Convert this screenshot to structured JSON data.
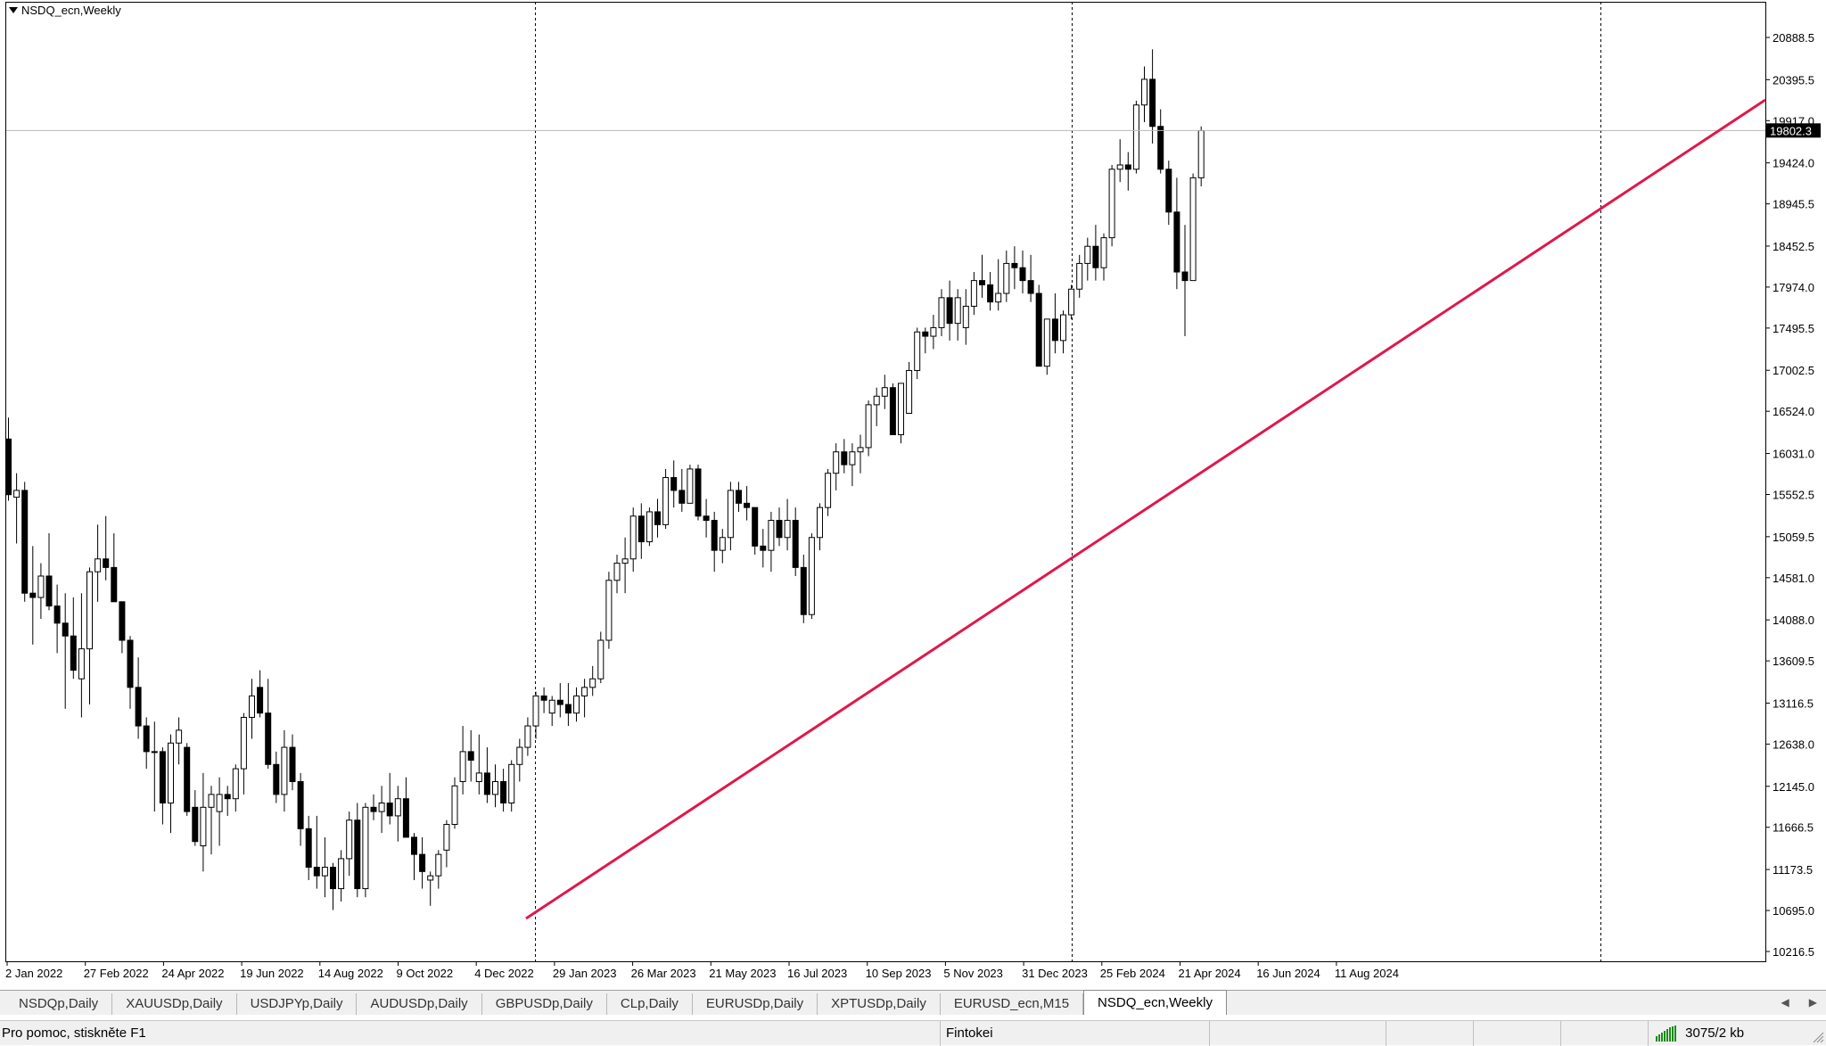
{
  "window": {
    "title": "NSDQ_ecn,Weekly"
  },
  "chart_data": {
    "type": "candlestick",
    "symbol": "NSDQ_ecn",
    "timeframe": "Weekly",
    "grid": false,
    "price_axis_labels": [
      "20888.5",
      "20395.5",
      "19917.0",
      "19424.0",
      "18945.5",
      "18452.5",
      "17974.0",
      "17495.5",
      "17002.5",
      "16524.0",
      "16031.0",
      "15552.5",
      "15059.5",
      "14581.0",
      "14088.0",
      "13609.5",
      "13116.5",
      "12638.0",
      "12145.0",
      "11666.5",
      "11173.5",
      "10695.0",
      "10216.5"
    ],
    "price_range": [
      10216.5,
      21300.0
    ],
    "current_price": "19802.3",
    "time_axis_labels": [
      "2 Jan 2022",
      "27 Feb 2022",
      "24 Apr 2022",
      "19 Jun 2022",
      "14 Aug 2022",
      "9 Oct 2022",
      "4 Dec 2022",
      "29 Jan 2023",
      "26 Mar 2023",
      "21 May 2023",
      "16 Jul 2023",
      "10 Sep 2023",
      "5 Nov 2023",
      "31 Dec 2023",
      "25 Feb 2024",
      "21 Apr 2024",
      "16 Jun 2024",
      "11 Aug 2024"
    ],
    "period_separators_at_labels": [
      "4 Dec 2022",
      "31 Dec 2023"
    ],
    "trendline": {
      "color": "#e0184a",
      "from": {
        "date": "11 Dec 2022",
        "price": 10640
      },
      "to": {
        "date": "beyond chart right edge",
        "price": 19990
      }
    },
    "candles": [
      {
        "o": 16200,
        "h": 16450,
        "l": 15480,
        "c": 15550
      },
      {
        "o": 15520,
        "h": 15800,
        "l": 14980,
        "c": 15600
      },
      {
        "o": 15600,
        "h": 15700,
        "l": 14300,
        "c": 14400
      },
      {
        "o": 14400,
        "h": 14950,
        "l": 13800,
        "c": 14350
      },
      {
        "o": 14350,
        "h": 14750,
        "l": 14100,
        "c": 14600
      },
      {
        "o": 14600,
        "h": 15100,
        "l": 14200,
        "c": 14250
      },
      {
        "o": 14250,
        "h": 14500,
        "l": 13700,
        "c": 14050
      },
      {
        "o": 14050,
        "h": 14400,
        "l": 13050,
        "c": 13900
      },
      {
        "o": 13900,
        "h": 14350,
        "l": 13400,
        "c": 13500
      },
      {
        "o": 13400,
        "h": 14400,
        "l": 12950,
        "c": 13750
      },
      {
        "o": 13750,
        "h": 14700,
        "l": 13100,
        "c": 14650
      },
      {
        "o": 14650,
        "h": 15200,
        "l": 14300,
        "c": 14800
      },
      {
        "o": 14800,
        "h": 15300,
        "l": 14550,
        "c": 14700
      },
      {
        "o": 14700,
        "h": 15100,
        "l": 14300,
        "c": 14300
      },
      {
        "o": 14300,
        "h": 14300,
        "l": 13700,
        "c": 13850
      },
      {
        "o": 13850,
        "h": 13900,
        "l": 13050,
        "c": 13300
      },
      {
        "o": 13300,
        "h": 13650,
        "l": 12700,
        "c": 12850
      },
      {
        "o": 12850,
        "h": 12950,
        "l": 12350,
        "c": 12550
      },
      {
        "o": 12550,
        "h": 12900,
        "l": 11850,
        "c": 12550
      },
      {
        "o": 12550,
        "h": 12600,
        "l": 11700,
        "c": 11950
      },
      {
        "o": 11950,
        "h": 12750,
        "l": 11600,
        "c": 12650
      },
      {
        "o": 12650,
        "h": 12950,
        "l": 12400,
        "c": 12800
      },
      {
        "o": 12600,
        "h": 12650,
        "l": 11800,
        "c": 11850
      },
      {
        "o": 11900,
        "h": 12100,
        "l": 11450,
        "c": 11500
      },
      {
        "o": 11450,
        "h": 12300,
        "l": 11150,
        "c": 11900
      },
      {
        "o": 11900,
        "h": 12150,
        "l": 11350,
        "c": 12050
      },
      {
        "o": 11850,
        "h": 12250,
        "l": 11450,
        "c": 12050
      },
      {
        "o": 12050,
        "h": 12150,
        "l": 11800,
        "c": 12000
      },
      {
        "o": 12000,
        "h": 12400,
        "l": 11850,
        "c": 12350
      },
      {
        "o": 12350,
        "h": 13000,
        "l": 12050,
        "c": 12950
      },
      {
        "o": 12950,
        "h": 13400,
        "l": 12700,
        "c": 13200
      },
      {
        "o": 13300,
        "h": 13500,
        "l": 12950,
        "c": 13000
      },
      {
        "o": 13000,
        "h": 13400,
        "l": 12350,
        "c": 12400
      },
      {
        "o": 12400,
        "h": 12550,
        "l": 11950,
        "c": 12050
      },
      {
        "o": 12050,
        "h": 12800,
        "l": 11850,
        "c": 12600
      },
      {
        "o": 12600,
        "h": 12750,
        "l": 12100,
        "c": 12200
      },
      {
        "o": 12200,
        "h": 12300,
        "l": 11450,
        "c": 11650
      },
      {
        "o": 11650,
        "h": 11800,
        "l": 11050,
        "c": 11200
      },
      {
        "o": 11200,
        "h": 11800,
        "l": 10950,
        "c": 11100
      },
      {
        "o": 11100,
        "h": 11550,
        "l": 10850,
        "c": 11200
      },
      {
        "o": 11200,
        "h": 11250,
        "l": 10700,
        "c": 10950
      },
      {
        "o": 10950,
        "h": 11400,
        "l": 10800,
        "c": 11300
      },
      {
        "o": 11300,
        "h": 11850,
        "l": 11100,
        "c": 11750
      },
      {
        "o": 11750,
        "h": 11950,
        "l": 10850,
        "c": 10950
      },
      {
        "o": 10950,
        "h": 11950,
        "l": 10850,
        "c": 11900
      },
      {
        "o": 11900,
        "h": 12050,
        "l": 11750,
        "c": 11850
      },
      {
        "o": 11850,
        "h": 12150,
        "l": 11600,
        "c": 11950
      },
      {
        "o": 11950,
        "h": 12300,
        "l": 11700,
        "c": 11800
      },
      {
        "o": 11800,
        "h": 12150,
        "l": 11500,
        "c": 12000
      },
      {
        "o": 12000,
        "h": 12250,
        "l": 11550,
        "c": 11550
      },
      {
        "o": 11550,
        "h": 11600,
        "l": 11050,
        "c": 11350
      },
      {
        "o": 11350,
        "h": 11550,
        "l": 10950,
        "c": 11150
      },
      {
        "o": 11050,
        "h": 11150,
        "l": 10750,
        "c": 11100
      },
      {
        "o": 11100,
        "h": 11400,
        "l": 10950,
        "c": 11350
      },
      {
        "o": 11400,
        "h": 11750,
        "l": 11200,
        "c": 11700
      },
      {
        "o": 11700,
        "h": 12250,
        "l": 11650,
        "c": 12150
      },
      {
        "o": 12200,
        "h": 12850,
        "l": 12050,
        "c": 12550
      },
      {
        "o": 12550,
        "h": 12800,
        "l": 12200,
        "c": 12450
      },
      {
        "o": 12200,
        "h": 12750,
        "l": 12050,
        "c": 12300
      },
      {
        "o": 12300,
        "h": 12600,
        "l": 11950,
        "c": 12050
      },
      {
        "o": 12050,
        "h": 12400,
        "l": 11900,
        "c": 12200
      },
      {
        "o": 12200,
        "h": 12350,
        "l": 11850,
        "c": 11950
      },
      {
        "o": 11950,
        "h": 12450,
        "l": 11850,
        "c": 12400
      },
      {
        "o": 12400,
        "h": 12700,
        "l": 12200,
        "c": 12600
      },
      {
        "o": 12600,
        "h": 12950,
        "l": 12500,
        "c": 12850
      },
      {
        "o": 12850,
        "h": 13250,
        "l": 12700,
        "c": 13200
      },
      {
        "o": 13200,
        "h": 13300,
        "l": 13000,
        "c": 13150
      },
      {
        "o": 13000,
        "h": 13200,
        "l": 12850,
        "c": 13150
      },
      {
        "o": 13150,
        "h": 13350,
        "l": 12950,
        "c": 13100
      },
      {
        "o": 13100,
        "h": 13350,
        "l": 12850,
        "c": 13000
      },
      {
        "o": 13000,
        "h": 13300,
        "l": 12900,
        "c": 13200
      },
      {
        "o": 13200,
        "h": 13400,
        "l": 12950,
        "c": 13300
      },
      {
        "o": 13300,
        "h": 13550,
        "l": 13200,
        "c": 13400
      },
      {
        "o": 13400,
        "h": 13950,
        "l": 13350,
        "c": 13850
      },
      {
        "o": 13850,
        "h": 14650,
        "l": 13750,
        "c": 14550
      },
      {
        "o": 14550,
        "h": 14850,
        "l": 14400,
        "c": 14750
      },
      {
        "o": 14750,
        "h": 15050,
        "l": 14400,
        "c": 14800
      },
      {
        "o": 14800,
        "h": 15400,
        "l": 14650,
        "c": 15300
      },
      {
        "o": 15300,
        "h": 15450,
        "l": 14800,
        "c": 15000
      },
      {
        "o": 15000,
        "h": 15400,
        "l": 14950,
        "c": 15350
      },
      {
        "o": 15350,
        "h": 15500,
        "l": 15050,
        "c": 15200
      },
      {
        "o": 15200,
        "h": 15850,
        "l": 15150,
        "c": 15750
      },
      {
        "o": 15750,
        "h": 15950,
        "l": 15400,
        "c": 15600
      },
      {
        "o": 15600,
        "h": 15850,
        "l": 15350,
        "c": 15450
      },
      {
        "o": 15450,
        "h": 15900,
        "l": 15450,
        "c": 15850
      },
      {
        "o": 15850,
        "h": 15900,
        "l": 15250,
        "c": 15300
      },
      {
        "o": 15300,
        "h": 15500,
        "l": 15050,
        "c": 15250
      },
      {
        "o": 15250,
        "h": 15350,
        "l": 14650,
        "c": 14900
      },
      {
        "o": 14900,
        "h": 15150,
        "l": 14750,
        "c": 15050
      },
      {
        "o": 15050,
        "h": 15700,
        "l": 14900,
        "c": 15600
      },
      {
        "o": 15600,
        "h": 15700,
        "l": 15350,
        "c": 15450
      },
      {
        "o": 15450,
        "h": 15650,
        "l": 15250,
        "c": 15400
      },
      {
        "o": 15400,
        "h": 15400,
        "l": 14850,
        "c": 14950
      },
      {
        "o": 14950,
        "h": 15150,
        "l": 14700,
        "c": 14900
      },
      {
        "o": 14900,
        "h": 15350,
        "l": 14650,
        "c": 15250
      },
      {
        "o": 15250,
        "h": 15400,
        "l": 14950,
        "c": 15050
      },
      {
        "o": 15050,
        "h": 15500,
        "l": 14900,
        "c": 15250
      },
      {
        "o": 15250,
        "h": 15400,
        "l": 14600,
        "c": 14700
      },
      {
        "o": 14700,
        "h": 14850,
        "l": 14050,
        "c": 14150
      },
      {
        "o": 14150,
        "h": 15100,
        "l": 14100,
        "c": 15050
      },
      {
        "o": 15050,
        "h": 15450,
        "l": 14900,
        "c": 15400
      },
      {
        "o": 15400,
        "h": 15850,
        "l": 15300,
        "c": 15800
      },
      {
        "o": 15800,
        "h": 16150,
        "l": 15600,
        "c": 16050
      },
      {
        "o": 16050,
        "h": 16200,
        "l": 15800,
        "c": 15900
      },
      {
        "o": 15900,
        "h": 16150,
        "l": 15650,
        "c": 16050
      },
      {
        "o": 16050,
        "h": 16250,
        "l": 15800,
        "c": 16100
      },
      {
        "o": 16100,
        "h": 16650,
        "l": 16000,
        "c": 16600
      },
      {
        "o": 16600,
        "h": 16800,
        "l": 16350,
        "c": 16700
      },
      {
        "o": 16700,
        "h": 16950,
        "l": 16550,
        "c": 16800
      },
      {
        "o": 16800,
        "h": 16850,
        "l": 16250,
        "c": 16250
      },
      {
        "o": 16250,
        "h": 16850,
        "l": 16150,
        "c": 16850
      },
      {
        "o": 16500,
        "h": 17100,
        "l": 16500,
        "c": 17000
      },
      {
        "o": 17000,
        "h": 17500,
        "l": 16900,
        "c": 17450
      },
      {
        "o": 17450,
        "h": 17500,
        "l": 17200,
        "c": 17400
      },
      {
        "o": 17400,
        "h": 17650,
        "l": 17250,
        "c": 17500
      },
      {
        "o": 17500,
        "h": 17950,
        "l": 17400,
        "c": 17850
      },
      {
        "o": 17850,
        "h": 18050,
        "l": 17350,
        "c": 17550
      },
      {
        "o": 17550,
        "h": 17950,
        "l": 17350,
        "c": 17850
      },
      {
        "o": 17500,
        "h": 17950,
        "l": 17300,
        "c": 17750
      },
      {
        "o": 17750,
        "h": 18150,
        "l": 17650,
        "c": 18050
      },
      {
        "o": 18050,
        "h": 18350,
        "l": 17850,
        "c": 18000
      },
      {
        "o": 18000,
        "h": 18150,
        "l": 17700,
        "c": 17800
      },
      {
        "o": 17800,
        "h": 18300,
        "l": 17700,
        "c": 17900
      },
      {
        "o": 17900,
        "h": 18400,
        "l": 17800,
        "c": 18250
      },
      {
        "o": 18250,
        "h": 18450,
        "l": 17950,
        "c": 18200
      },
      {
        "o": 18200,
        "h": 18400,
        "l": 17900,
        "c": 18050
      },
      {
        "o": 18050,
        "h": 18350,
        "l": 17800,
        "c": 17900
      },
      {
        "o": 17900,
        "h": 18000,
        "l": 17050,
        "c": 17050
      },
      {
        "o": 17050,
        "h": 17600,
        "l": 16950,
        "c": 17600
      },
      {
        "o": 17600,
        "h": 17900,
        "l": 17200,
        "c": 17350
      },
      {
        "o": 17350,
        "h": 17700,
        "l": 17200,
        "c": 17650
      },
      {
        "o": 17650,
        "h": 18000,
        "l": 17600,
        "c": 17950
      },
      {
        "o": 17950,
        "h": 18350,
        "l": 17850,
        "c": 18250
      },
      {
        "o": 18250,
        "h": 18550,
        "l": 18050,
        "c": 18450
      },
      {
        "o": 18450,
        "h": 18700,
        "l": 18050,
        "c": 18200
      },
      {
        "o": 18200,
        "h": 18600,
        "l": 18050,
        "c": 18550
      },
      {
        "o": 18550,
        "h": 19400,
        "l": 18450,
        "c": 19350
      },
      {
        "o": 19350,
        "h": 19700,
        "l": 19200,
        "c": 19400
      },
      {
        "o": 19400,
        "h": 19550,
        "l": 19100,
        "c": 19350
      },
      {
        "o": 19350,
        "h": 20150,
        "l": 19300,
        "c": 20100
      },
      {
        "o": 20100,
        "h": 20550,
        "l": 19900,
        "c": 20400
      },
      {
        "o": 20400,
        "h": 20750,
        "l": 19650,
        "c": 19850
      },
      {
        "o": 19850,
        "h": 20050,
        "l": 19300,
        "c": 19350
      },
      {
        "o": 19350,
        "h": 19450,
        "l": 18700,
        "c": 18850
      },
      {
        "o": 18850,
        "h": 19250,
        "l": 17950,
        "c": 18150
      },
      {
        "o": 18150,
        "h": 18700,
        "l": 17400,
        "c": 18050
      },
      {
        "o": 18050,
        "h": 19300,
        "l": 18150,
        "c": 19250
      },
      {
        "o": 19250,
        "h": 19850,
        "l": 19150,
        "c": 19800
      }
    ]
  },
  "tabs": [
    {
      "label": "NSDQp,Daily",
      "active": false
    },
    {
      "label": "XAUUSDp,Daily",
      "active": false
    },
    {
      "label": "USDJPYp,Daily",
      "active": false
    },
    {
      "label": "AUDUSDp,Daily",
      "active": false
    },
    {
      "label": "GBPUSDp,Daily",
      "active": false
    },
    {
      "label": "CLp,Daily",
      "active": false
    },
    {
      "label": "EURUSDp,Daily",
      "active": false
    },
    {
      "label": "XPTUSDp,Daily",
      "active": false
    },
    {
      "label": "EURUSD_ecn,M15",
      "active": false
    },
    {
      "label": "NSDQ_ecn,Weekly",
      "active": true
    }
  ],
  "tab_scroll": {
    "left": "◀",
    "right": "▶"
  },
  "status_bar": {
    "help_text": "Pro pomoc, stiskněte F1",
    "profile": "Fintokei",
    "traffic": "3075/2 kb"
  }
}
